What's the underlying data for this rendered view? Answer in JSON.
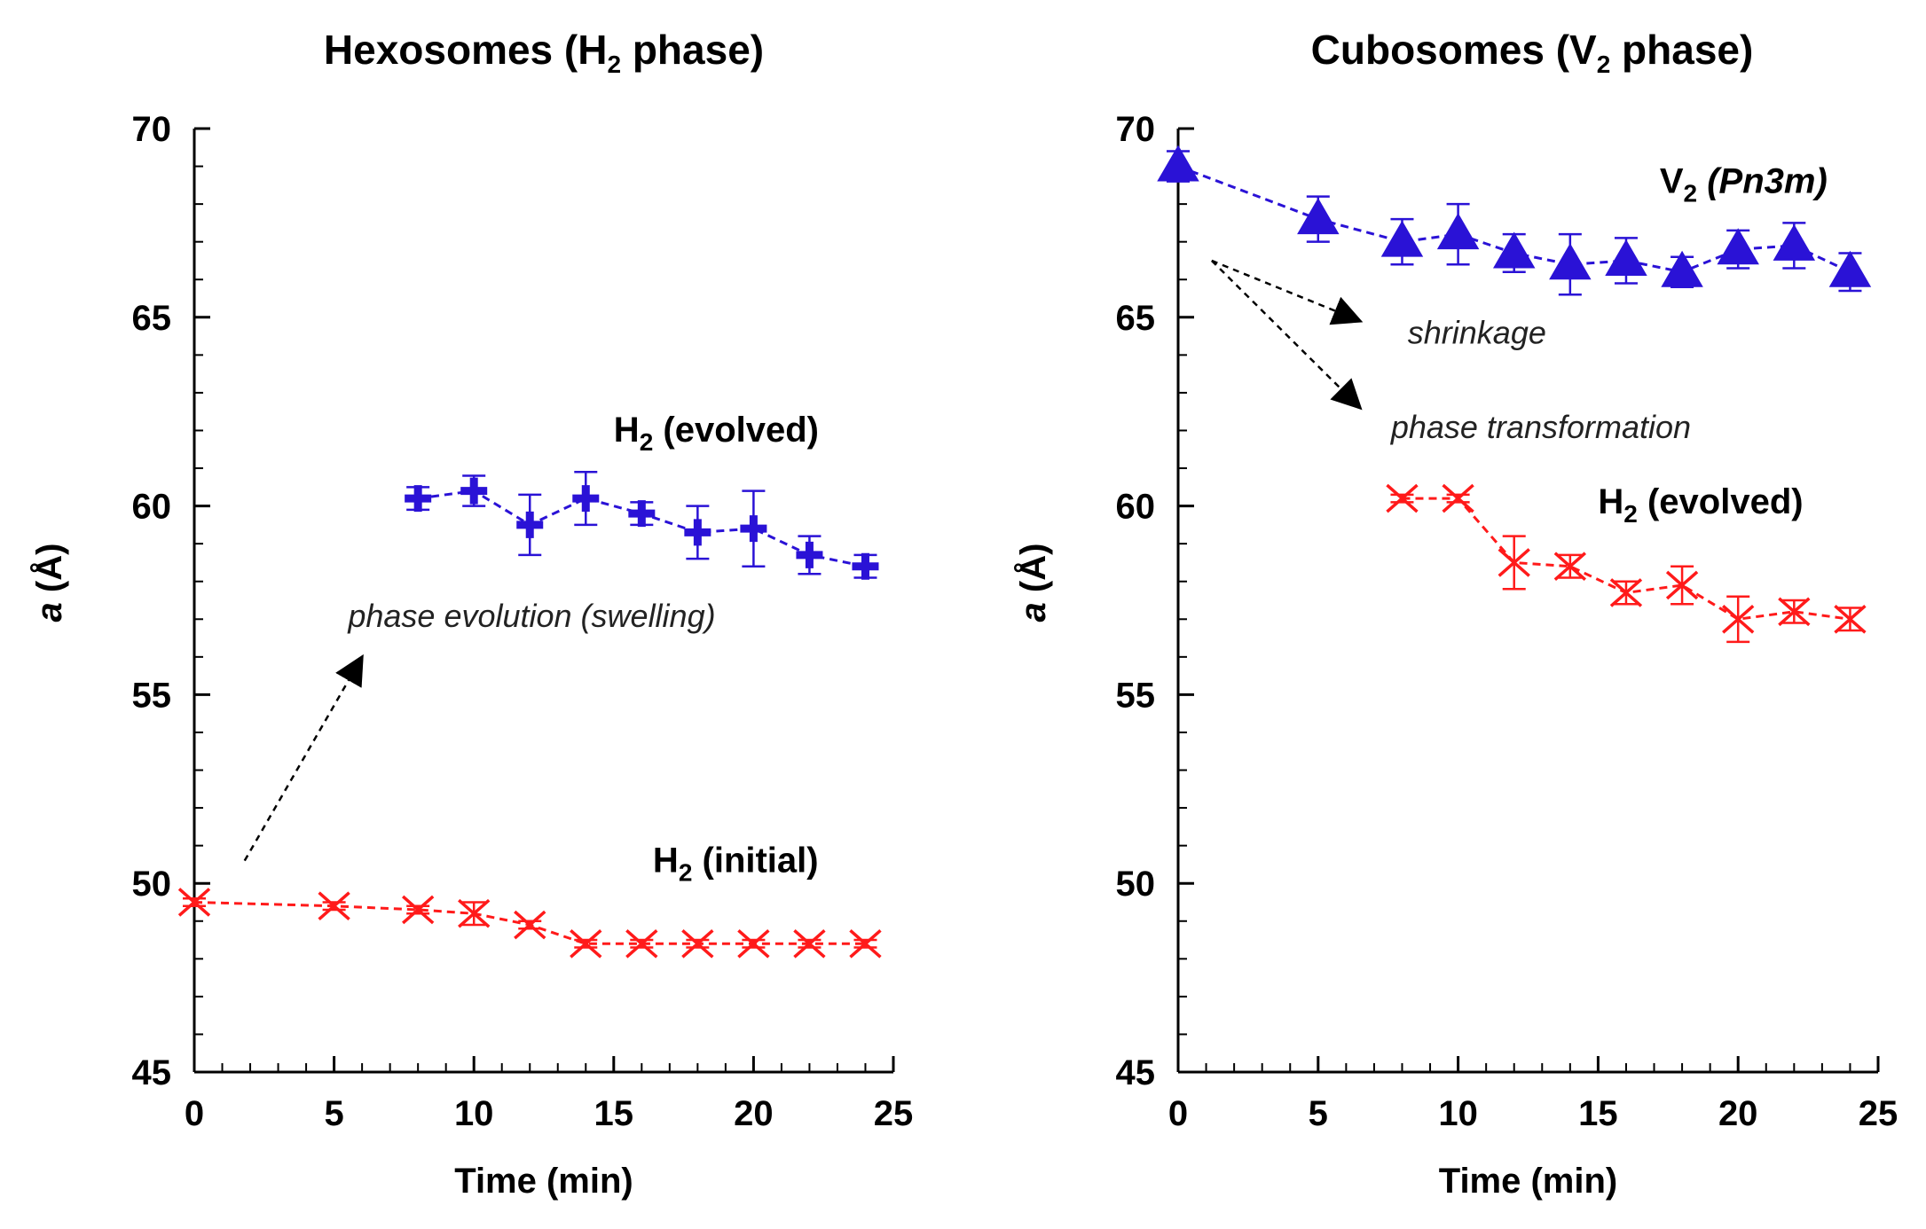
{
  "chart_data": [
    {
      "type": "line",
      "title_parts": [
        "Hexosomes (H",
        "2",
        " phase)"
      ],
      "xlabel": "Time (min)",
      "ylabel_parts": [
        "a",
        " (Å)"
      ],
      "xlim": [
        0,
        25
      ],
      "ylim": [
        45,
        70
      ],
      "xticks": [
        0,
        5,
        10,
        15,
        20,
        25
      ],
      "yticks": [
        45,
        50,
        55,
        60,
        65,
        70
      ],
      "grid": false,
      "series": [
        {
          "name": "H2 (evolved)",
          "color": "#2a12d6",
          "marker": "plus",
          "x": [
            8,
            10,
            12,
            14,
            16,
            18,
            20,
            22,
            24
          ],
          "y": [
            60.2,
            60.4,
            59.5,
            60.2,
            59.8,
            59.3,
            59.4,
            58.7,
            58.4
          ],
          "err": [
            0.3,
            0.4,
            0.8,
            0.7,
            0.3,
            0.7,
            1.0,
            0.5,
            0.3
          ]
        },
        {
          "name": "H2 (initial)",
          "color": "#ff1a1a",
          "marker": "x",
          "x": [
            0,
            5,
            8,
            10,
            12,
            14,
            16,
            18,
            20,
            22,
            24
          ],
          "y": [
            49.5,
            49.4,
            49.3,
            49.2,
            48.9,
            48.4,
            48.4,
            48.4,
            48.4,
            48.4,
            48.4
          ],
          "err": [
            0.1,
            0.1,
            0.1,
            0.3,
            0.1,
            0.1,
            0.1,
            0.1,
            0.1,
            0.1,
            0.1
          ]
        }
      ],
      "labels": [
        {
          "parts": [
            "H",
            "2",
            " (evolved)"
          ],
          "x": 15.0,
          "y": 61.7
        },
        {
          "parts": [
            "H",
            "2",
            " (initial)"
          ],
          "x": 16.4,
          "y": 50.3
        }
      ],
      "annotations": [
        {
          "text": "phase evolution (swelling)",
          "x": 5.5,
          "y": 56.8
        },
        {
          "arrow_from": [
            1.8,
            50.6
          ],
          "arrow_to": [
            6.0,
            56.0
          ]
        }
      ]
    },
    {
      "type": "line",
      "title_parts": [
        "Cubosomes (V",
        "2",
        " phase)"
      ],
      "xlabel": "Time (min)",
      "ylabel_parts": [
        "a",
        " (Å)"
      ],
      "xlim": [
        0,
        25
      ],
      "ylim": [
        45,
        70
      ],
      "xticks": [
        0,
        5,
        10,
        15,
        20,
        25
      ],
      "yticks": [
        45,
        50,
        55,
        60,
        65,
        70
      ],
      "grid": false,
      "series": [
        {
          "name": "V2 (Pn3m)",
          "color": "#2a12d6",
          "marker": "triangle",
          "x": [
            0,
            5,
            8,
            10,
            12,
            14,
            16,
            18,
            20,
            22,
            24
          ],
          "y": [
            69.0,
            67.6,
            67.0,
            67.2,
            66.7,
            66.4,
            66.5,
            66.2,
            66.8,
            66.9,
            66.2
          ],
          "err": [
            0.4,
            0.6,
            0.6,
            0.8,
            0.5,
            0.8,
            0.6,
            0.4,
            0.5,
            0.6,
            0.5
          ]
        },
        {
          "name": "H2 (evolved)",
          "color": "#ff1a1a",
          "marker": "x",
          "x": [
            8,
            10,
            12,
            14,
            16,
            18,
            20,
            22,
            24
          ],
          "y": [
            60.2,
            60.2,
            58.5,
            58.4,
            57.7,
            57.9,
            57.0,
            57.2,
            57.0
          ],
          "err": [
            0.1,
            0.1,
            0.7,
            0.3,
            0.3,
            0.5,
            0.6,
            0.3,
            0.3
          ]
        }
      ],
      "labels": [
        {
          "parts": [
            "V",
            "2",
            " ",
            "(Pn3m)"
          ],
          "x": 17.2,
          "y": 68.3
        },
        {
          "parts": [
            "H",
            "2",
            " (evolved)"
          ],
          "x": 15.0,
          "y": 59.8
        }
      ],
      "annotations": [
        {
          "text": "shrinkage",
          "x": 8.2,
          "y": 64.3
        },
        {
          "text": "phase transformation",
          "x": 7.6,
          "y": 61.8
        },
        {
          "arrow_from": [
            1.2,
            66.5
          ],
          "arrow_to": [
            6.5,
            64.9
          ]
        },
        {
          "arrow_from": [
            1.2,
            66.5
          ],
          "arrow_to": [
            6.5,
            62.6
          ]
        }
      ]
    }
  ]
}
